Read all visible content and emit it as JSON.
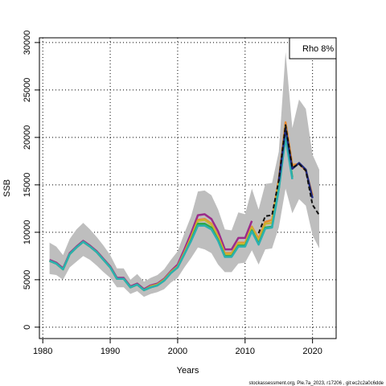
{
  "chart_data": {
    "type": "line",
    "xlabel": "Years",
    "ylabel": "SSB",
    "xlim": [
      1979.5,
      2023.5
    ],
    "ylim": [
      -1200,
      30500
    ],
    "x_ticks": [
      1980,
      1990,
      2000,
      2010,
      2020
    ],
    "y_ticks": [
      0,
      5000,
      10000,
      15000,
      20000,
      25000,
      30000
    ],
    "grid": true,
    "legend_placement": "top-right",
    "legend_text": "Rho 8%",
    "footer": "stockassessment.org, Ple.7a_2023, r17206 , git:ec2c2a0c6dde",
    "band": {
      "x": [
        1981,
        1982,
        1983,
        1984,
        1985,
        1986,
        1987,
        1988,
        1989,
        1990,
        1991,
        1992,
        1993,
        1994,
        1995,
        1996,
        1997,
        1998,
        1999,
        2000,
        2001,
        2002,
        2003,
        2004,
        2005,
        2006,
        2007,
        2008,
        2009,
        2010,
        2011,
        2012,
        2013,
        2014,
        2015,
        2016,
        2017,
        2018,
        2019,
        2020,
        2021
      ],
      "upper": [
        8900,
        8500,
        7600,
        9300,
        10300,
        11000,
        10300,
        9500,
        8600,
        7600,
        6200,
        6200,
        5000,
        5600,
        4800,
        5200,
        5500,
        6100,
        7100,
        8000,
        9900,
        11700,
        14300,
        14400,
        13900,
        12400,
        10300,
        10200,
        12100,
        11900,
        14600,
        12400,
        15100,
        15200,
        18500,
        29000,
        21000,
        24000,
        23000,
        18200,
        16600
      ],
      "lower": [
        5600,
        5500,
        5000,
        6300,
        6900,
        7500,
        7100,
        6500,
        5800,
        5200,
        4200,
        4200,
        3500,
        3800,
        3200,
        3500,
        3700,
        4000,
        4700,
        5200,
        6300,
        7300,
        8400,
        8200,
        7800,
        6600,
        5800,
        5800,
        6700,
        6800,
        8100,
        6600,
        8200,
        8300,
        10500,
        14600,
        12000,
        13500,
        12800,
        9700,
        8300
      ]
    },
    "series": [
      {
        "color": "#9b2a8a",
        "x": [
          1981,
          1982,
          1983,
          1984,
          1985,
          1986,
          1987,
          1988,
          1989,
          1990,
          1991,
          1992,
          1993,
          1994,
          1995,
          1996,
          1997,
          1998,
          1999,
          2000,
          2001,
          2002,
          2003,
          2004,
          2005,
          2006,
          2007,
          2008,
          2009,
          2010,
          2011
        ],
        "y": [
          7100,
          6800,
          6200,
          7800,
          8500,
          9100,
          8600,
          8000,
          7200,
          6400,
          5200,
          5200,
          4300,
          4600,
          4000,
          4400,
          4600,
          5100,
          5900,
          6600,
          8200,
          9900,
          11800,
          11900,
          11400,
          10100,
          8200,
          8200,
          9400,
          9400,
          11200
        ]
      },
      {
        "color": "#e88a2f",
        "x": [
          1981,
          1982,
          1983,
          1984,
          1985,
          1986,
          1987,
          1988,
          1989,
          1990,
          1991,
          1992,
          1993,
          1994,
          1995,
          1996,
          1997,
          1998,
          1999,
          2000,
          2001,
          2002,
          2003,
          2004,
          2005,
          2006,
          2007,
          2008,
          2009,
          2010,
          2011,
          2012,
          2013,
          2014,
          2015,
          2016,
          2017,
          2018,
          2019,
          2020
        ],
        "y": [
          7000,
          6700,
          6100,
          7700,
          8400,
          9000,
          8500,
          7900,
          7100,
          6300,
          5100,
          5100,
          4200,
          4500,
          3900,
          4300,
          4500,
          5000,
          5800,
          6400,
          7900,
          9500,
          11300,
          11400,
          10900,
          9600,
          7800,
          7800,
          8900,
          8900,
          10600,
          9300,
          11100,
          11300,
          15600,
          21600,
          17100,
          17200,
          16500,
          13900
        ]
      },
      {
        "color": "#c8b432",
        "x": [
          1981,
          1982,
          1983,
          1984,
          1985,
          1986,
          1987,
          1988,
          1989,
          1990,
          1991,
          1992,
          1993,
          1994,
          1995,
          1996,
          1997,
          1998,
          1999,
          2000,
          2001,
          2002,
          2003,
          2004,
          2005,
          2006,
          2007,
          2008,
          2009,
          2010,
          2011,
          2012,
          2013,
          2014,
          2015,
          2016,
          2017
        ],
        "y": [
          7000,
          6700,
          6100,
          7700,
          8400,
          9000,
          8500,
          7900,
          7100,
          6300,
          5100,
          5100,
          4200,
          4500,
          3900,
          4300,
          4500,
          5000,
          5800,
          6400,
          7800,
          9400,
          11200,
          11300,
          10800,
          9500,
          7700,
          7700,
          8800,
          8800,
          10500,
          9100,
          10900,
          11000,
          15100,
          21200,
          16600
        ]
      },
      {
        "color": "#2ea84a",
        "x": [
          1981,
          1982,
          1983,
          1984,
          1985,
          1986,
          1987,
          1988,
          1989,
          1990,
          1991,
          1992,
          1993,
          1994,
          1995,
          1996,
          1997,
          1998,
          1999,
          2000,
          2001,
          2002,
          2003,
          2004,
          2005,
          2006,
          2007,
          2008,
          2009,
          2010,
          2011,
          2012,
          2013,
          2014,
          2015,
          2016,
          2017
        ],
        "y": [
          7000,
          6700,
          6100,
          7700,
          8400,
          9000,
          8500,
          7900,
          7100,
          6300,
          5100,
          5100,
          4200,
          4500,
          3900,
          4200,
          4400,
          4900,
          5700,
          6300,
          7700,
          9200,
          10900,
          10900,
          10500,
          9200,
          7500,
          7500,
          8600,
          8600,
          10200,
          8800,
          10500,
          10600,
          14600,
          20200,
          15800
        ]
      },
      {
        "color": "#2bb0b0",
        "x": [
          1981,
          1982,
          1983,
          1984,
          1985,
          1986,
          1987,
          1988,
          1989,
          1990,
          1991,
          1992,
          1993,
          1994,
          1995,
          1996,
          1997,
          1998,
          1999,
          2000,
          2001,
          2002,
          2003,
          2004,
          2005,
          2006,
          2007,
          2008,
          2009,
          2010,
          2011,
          2012,
          2013,
          2014,
          2015,
          2016,
          2017
        ],
        "y": [
          7000,
          6700,
          6100,
          7700,
          8400,
          9000,
          8500,
          7900,
          7100,
          6300,
          5100,
          5100,
          4200,
          4500,
          3900,
          4200,
          4400,
          4900,
          5700,
          6300,
          7700,
          9100,
          10700,
          10700,
          10300,
          9100,
          7400,
          7400,
          8500,
          8500,
          10100,
          8700,
          10400,
          10500,
          14500,
          20000,
          15600
        ]
      },
      {
        "color": "#1f2a80",
        "x": [
          2015,
          2016,
          2017,
          2018,
          2019,
          2020
        ],
        "y": [
          15400,
          21000,
          16700,
          17300,
          16600,
          13600
        ]
      },
      {
        "color": "#111111",
        "dashed": true,
        "x": [
          2012,
          2013,
          2014,
          2015,
          2016,
          2017,
          2018,
          2019,
          2020,
          2021
        ],
        "y": [
          9900,
          11700,
          11800,
          15500,
          21300,
          16800,
          17200,
          16500,
          12900,
          11800
        ]
      }
    ]
  }
}
